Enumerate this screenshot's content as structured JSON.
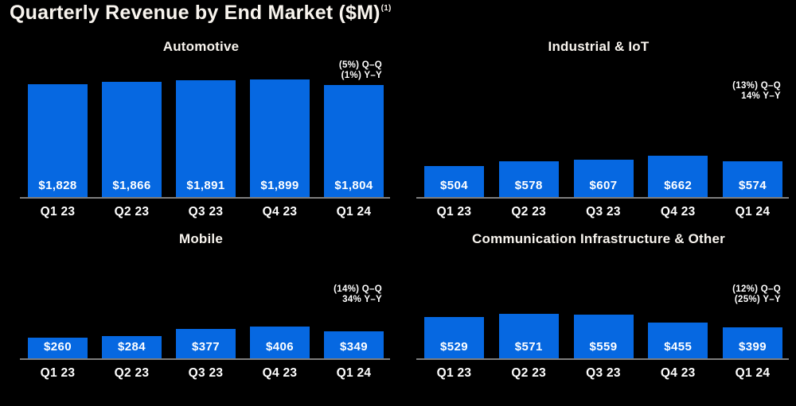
{
  "page": {
    "title": "Quarterly Revenue by End Market ($M)",
    "title_superscript": "(1)"
  },
  "colors": {
    "background": "#000000",
    "bar_fill": "#0668E1",
    "heading_text": "#F8F4EE",
    "label_text": "#FFFFFF",
    "axis_line": "#7E7E7E"
  },
  "chart_data": [
    {
      "type": "bar",
      "title": "Automotive",
      "categories": [
        "Q1 23",
        "Q2 23",
        "Q3 23",
        "Q4 23",
        "Q1 24"
      ],
      "values": [
        1828,
        1866,
        1891,
        1899,
        1804
      ],
      "value_labels": [
        "$1,828",
        "$1,866",
        "$1,891",
        "$1,899",
        "$1,804"
      ],
      "annotation_qq": "(5%) Q–Q",
      "annotation_yy": "(1%) Y–Y",
      "ylabel": "",
      "grid": false,
      "legend": "none"
    },
    {
      "type": "bar",
      "title": "Industrial & IoT",
      "categories": [
        "Q1 23",
        "Q2 23",
        "Q3 23",
        "Q4 23",
        "Q1 24"
      ],
      "values": [
        504,
        578,
        607,
        662,
        574
      ],
      "value_labels": [
        "$504",
        "$578",
        "$607",
        "$662",
        "$574"
      ],
      "annotation_qq": "(13%) Q–Q",
      "annotation_yy": "14% Y–Y",
      "ylabel": "",
      "grid": false,
      "legend": "none"
    },
    {
      "type": "bar",
      "title": "Mobile",
      "categories": [
        "Q1 23",
        "Q2 23",
        "Q3 23",
        "Q4 23",
        "Q1 24"
      ],
      "values": [
        260,
        284,
        377,
        406,
        349
      ],
      "value_labels": [
        "$260",
        "$284",
        "$377",
        "$406",
        "$349"
      ],
      "annotation_qq": "(14%) Q–Q",
      "annotation_yy": "34% Y–Y",
      "ylabel": "",
      "grid": false,
      "legend": "none"
    },
    {
      "type": "bar",
      "title": "Communication Infrastructure & Other",
      "categories": [
        "Q1 23",
        "Q2 23",
        "Q3 23",
        "Q4 23",
        "Q1 24"
      ],
      "values": [
        529,
        571,
        559,
        455,
        399
      ],
      "value_labels": [
        "$529",
        "$571",
        "$559",
        "$455",
        "$399"
      ],
      "annotation_qq": "(12%) Q–Q",
      "annotation_yy": "(25%) Y–Y",
      "ylabel": "",
      "grid": false,
      "legend": "none"
    }
  ]
}
